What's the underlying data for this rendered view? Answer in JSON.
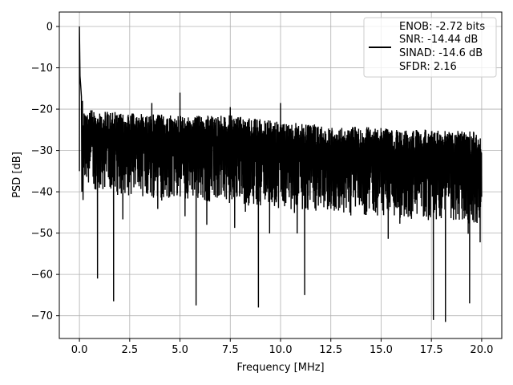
{
  "chart_data": {
    "type": "line",
    "title": "",
    "xlabel": "Frequency [MHz]",
    "ylabel": "PSD [dB]",
    "xlim": [
      -1.0,
      21.0
    ],
    "ylim": [
      -75.5,
      3.5
    ],
    "xticks": [
      0.0,
      2.5,
      5.0,
      7.5,
      10.0,
      12.5,
      15.0,
      17.5,
      20.0
    ],
    "xtick_labels": [
      "0.0",
      "2.5",
      "5.0",
      "7.5",
      "10.0",
      "12.5",
      "15.0",
      "17.5",
      "20.0"
    ],
    "yticks": [
      0,
      -10,
      -20,
      -30,
      -40,
      -50,
      -60,
      -70
    ],
    "ytick_labels": [
      "0",
      "−10",
      "−20",
      "−30",
      "−40",
      "−50",
      "−60",
      "−70"
    ],
    "grid": true,
    "legend_position": "upper right",
    "series": [
      {
        "name": "ENOB: -2.72 bits\nSNR: -14.44 dB\nSINAD: -14.6 dB\nSFDR: 2.16",
        "color": "#000000",
        "description": "dense noise floor PSD",
        "peaks": [
          {
            "x": 0.0,
            "y": 0
          },
          {
            "x": 0.03,
            "y": -12
          },
          {
            "x": 5.0,
            "y": -16
          },
          {
            "x": 3.6,
            "y": -18.5
          },
          {
            "x": 7.5,
            "y": -19.5
          },
          {
            "x": 10.0,
            "y": -18.5
          }
        ],
        "upper_envelope": {
          "x": [
            0.2,
            2.5,
            5.0,
            7.5,
            10.0,
            12.5,
            15.0,
            17.5,
            20.0
          ],
          "y": [
            -20,
            -21,
            -21.5,
            -21.5,
            -23,
            -24,
            -24.5,
            -25,
            -25.5
          ]
        },
        "lower_envelope": {
          "x": [
            0.2,
            2.5,
            5.0,
            7.5,
            10.0,
            12.5,
            15.0,
            17.5,
            20.0
          ],
          "y": [
            -45,
            -47,
            -48,
            -49,
            -50,
            -51,
            -52,
            -53,
            -54
          ]
        },
        "deep_dips": [
          {
            "x": 0.9,
            "y": -61
          },
          {
            "x": 1.7,
            "y": -66.5
          },
          {
            "x": 5.8,
            "y": -63
          },
          {
            "x": 5.8,
            "y": -67.5
          },
          {
            "x": 8.9,
            "y": -68
          },
          {
            "x": 11.2,
            "y": -65
          },
          {
            "x": 17.6,
            "y": -71
          },
          {
            "x": 18.2,
            "y": -71.5
          },
          {
            "x": 19.4,
            "y": -67
          }
        ]
      }
    ],
    "legend_lines": [
      "ENOB: -2.72 bits",
      "SNR: -14.44 dB",
      "SINAD: -14.6 dB",
      "SFDR: 2.16"
    ]
  }
}
